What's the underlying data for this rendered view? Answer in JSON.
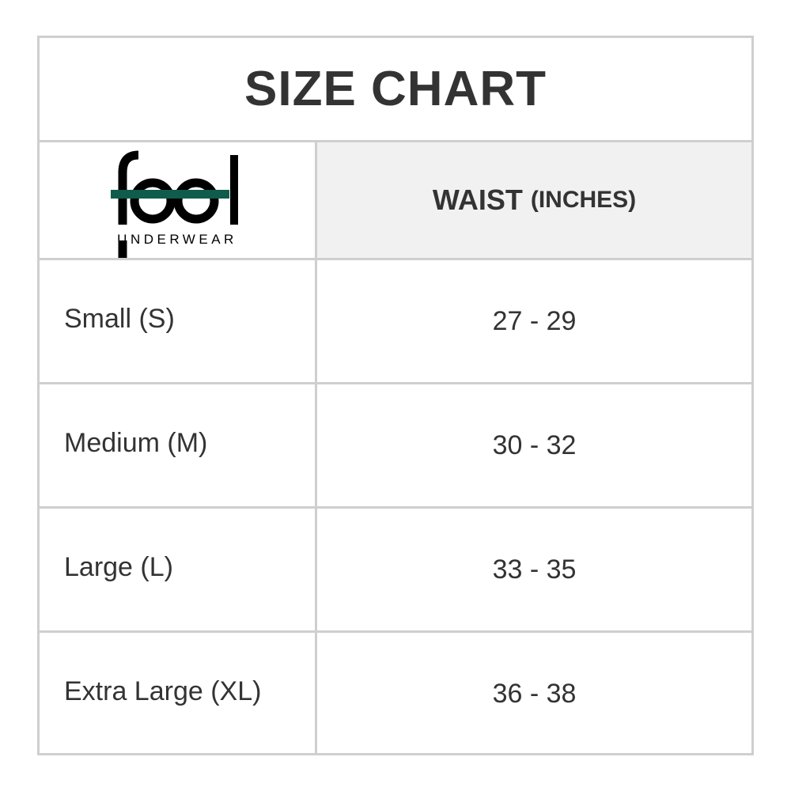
{
  "title": "SIZE CHART",
  "logo": {
    "text": "feel",
    "subtext": "UNDERWEAR",
    "accent_color": "#0f5c4a"
  },
  "header": {
    "measure": "WAIST",
    "unit": "(INCHES)"
  },
  "rows": [
    {
      "size": "Small (S)",
      "waist": "27 - 29"
    },
    {
      "size": "Medium (M)",
      "waist": "30 - 32"
    },
    {
      "size": "Large (L)",
      "waist": "33 - 35"
    },
    {
      "size": "Extra Large (XL)",
      "waist": "36 - 38"
    }
  ]
}
